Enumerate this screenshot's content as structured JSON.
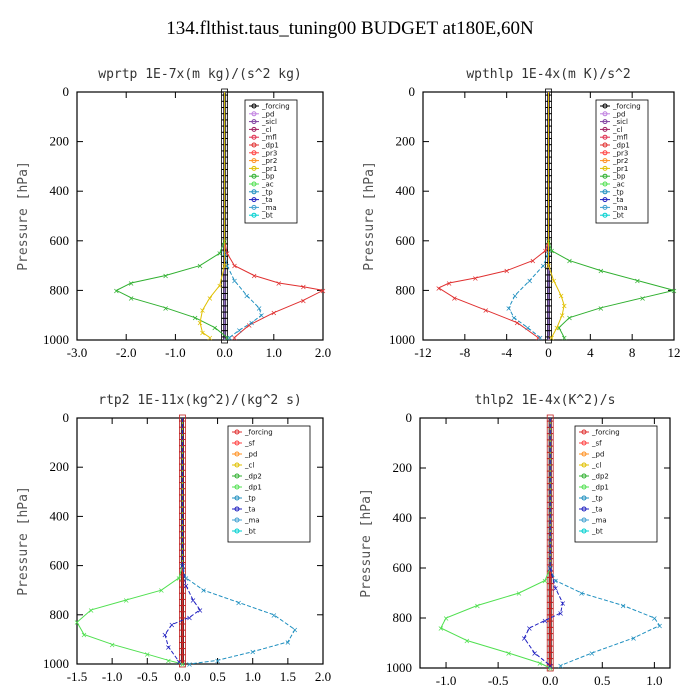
{
  "page_title": "134.flthist.taus_tuning00  BUDGET at180E,60N",
  "chart_data": [
    {
      "type": "line",
      "title": "wprtp  1E-7x(m kg)/(s^2 kg)",
      "ylabel": "Pressure [hPa]",
      "xlim": [
        -3.0,
        2.0
      ],
      "ylim": [
        1000,
        0
      ],
      "xticks": [
        "-3.0",
        "-2.0",
        "-1.0",
        "0.0",
        "1.0",
        "2.0"
      ],
      "xtick_values": [
        -3,
        -2,
        -1,
        0,
        1,
        2
      ],
      "yticks": [
        0,
        200,
        400,
        600,
        800,
        1000
      ],
      "legend_position": "top-right",
      "legend": [
        "_forcing",
        "_pd",
        "_sicl",
        "_cl",
        "_mfl",
        "_dp1",
        "_pr3",
        "_pr2",
        "_pr1",
        "_bp",
        "_ac",
        "_tp",
        "_ta",
        "_ma",
        "_bt"
      ],
      "series": [
        {
          "name": "_dp1",
          "color": "#e03030",
          "x": [
            0,
            0,
            0.05,
            0.2,
            0.6,
            1.1,
            1.6,
            2.0,
            1.6,
            1.0,
            0.5,
            0.2
          ],
          "y": [
            0,
            600,
            650,
            700,
            740,
            770,
            785,
            800,
            840,
            890,
            940,
            990
          ]
        },
        {
          "name": "_ac",
          "color": "#30b030",
          "x": [
            0,
            0,
            -0.1,
            -0.5,
            -1.2,
            -1.9,
            -2.2,
            -1.9,
            -1.2,
            -0.6,
            -0.2,
            0.05
          ],
          "y": [
            0,
            600,
            650,
            700,
            740,
            770,
            800,
            830,
            870,
            910,
            950,
            990
          ]
        },
        {
          "name": "_tp",
          "color": "#2090c0",
          "x": [
            0,
            0,
            0.05,
            0.2,
            0.45,
            0.7,
            0.75,
            0.55,
            0.3,
            0.1
          ],
          "y": [
            0,
            650,
            700,
            760,
            820,
            870,
            900,
            930,
            960,
            990
          ]
        },
        {
          "name": "_pr1",
          "color": "#e0c000",
          "x": [
            0,
            0,
            -0.1,
            -0.3,
            -0.45,
            -0.5,
            -0.45,
            -0.3
          ],
          "y": [
            0,
            700,
            780,
            830,
            880,
            930,
            970,
            990
          ]
        }
      ]
    },
    {
      "type": "line",
      "title": "wpthlp  1E-4x(m K)/s^2",
      "ylabel": "Pressure [hPa]",
      "xlim": [
        -12,
        12
      ],
      "ylim": [
        1000,
        0
      ],
      "xticks": [
        "-12",
        "-8",
        "-4",
        "0",
        "4",
        "8",
        "12"
      ],
      "xtick_values": [
        -12,
        -8,
        -4,
        0,
        4,
        8,
        12
      ],
      "yticks": [
        0,
        200,
        400,
        600,
        800,
        1000
      ],
      "legend_position": "top-right",
      "legend": [
        "_forcing",
        "_pd",
        "_sicl",
        "_cl",
        "_mfl",
        "_dp1",
        "_pr3",
        "_pr2",
        "_pr1",
        "_bp",
        "_ac",
        "_tp",
        "_ta",
        "_ma",
        "_bt"
      ],
      "series": [
        {
          "name": "_dp1",
          "color": "#e03030",
          "x": [
            0,
            0,
            -0.3,
            -1.5,
            -4,
            -7,
            -9.5,
            -10.5,
            -9,
            -6,
            -3,
            -1
          ],
          "y": [
            0,
            600,
            640,
            680,
            720,
            750,
            770,
            790,
            830,
            880,
            930,
            990
          ]
        },
        {
          "name": "_ac",
          "color": "#30b030",
          "x": [
            0,
            0,
            0.3,
            2,
            5,
            8.5,
            12,
            9,
            5,
            2,
            1,
            1.5
          ],
          "y": [
            0,
            600,
            640,
            680,
            720,
            760,
            800,
            830,
            870,
            910,
            950,
            990
          ]
        },
        {
          "name": "_tp",
          "color": "#2090c0",
          "x": [
            0,
            0,
            -0.5,
            -1.8,
            -3.2,
            -3.8,
            -3.3,
            -2,
            -0.8
          ],
          "y": [
            0,
            650,
            700,
            760,
            820,
            870,
            910,
            950,
            990
          ]
        },
        {
          "name": "_pr1",
          "color": "#e0c000",
          "x": [
            0,
            0,
            0.5,
            1.2,
            1.5,
            1.3,
            0.8,
            0.3
          ],
          "y": [
            0,
            700,
            760,
            820,
            860,
            900,
            950,
            990
          ]
        }
      ]
    },
    {
      "type": "line",
      "title": "rtp2  1E-11x(kg^2)/(kg^2 s)",
      "ylabel": "Pressure [hPa]",
      "xlim": [
        -1.5,
        2.0
      ],
      "ylim": [
        1000,
        0
      ],
      "xticks": [
        "-1.5",
        "-1.0",
        "-0.5",
        "0.0",
        "0.5",
        "1.0",
        "1.5",
        "2.0"
      ],
      "xtick_values": [
        -1.5,
        -1.0,
        -0.5,
        0,
        0.5,
        1.0,
        1.5,
        2.0
      ],
      "yticks": [
        0,
        200,
        400,
        600,
        800,
        1000
      ],
      "legend_position": "top-right",
      "legend": [
        "_forcing",
        "_sf",
        "_pd",
        "_cl",
        "_dp2",
        "_dp1",
        "_tp",
        "_ta",
        "_ma",
        "_bt"
      ],
      "series": [
        {
          "name": "_dp1",
          "color": "#50e050",
          "x": [
            0,
            0,
            -0.05,
            -0.3,
            -0.8,
            -1.3,
            -1.5,
            -1.4,
            -1.0,
            -0.5,
            -0.2,
            0
          ],
          "y": [
            0,
            600,
            650,
            700,
            740,
            780,
            830,
            880,
            920,
            960,
            985,
            1000
          ]
        },
        {
          "name": "_tp",
          "color": "#2090c0",
          "x": [
            0,
            0,
            0.05,
            0.3,
            0.8,
            1.3,
            1.6,
            1.5,
            1.0,
            0.5,
            0.1
          ],
          "y": [
            0,
            600,
            650,
            700,
            750,
            800,
            860,
            910,
            950,
            985,
            1000
          ]
        },
        {
          "name": "_ta",
          "color": "#2020c0",
          "x": [
            0,
            0,
            0.05,
            0.15,
            0.25,
            0.1,
            -0.15,
            -0.25,
            -0.2,
            -0.05
          ],
          "y": [
            0,
            600,
            680,
            740,
            780,
            810,
            840,
            880,
            930,
            990
          ]
        },
        {
          "name": "_forcing",
          "color": "#e03030",
          "x": [
            0,
            0
          ],
          "y": [
            0,
            1000
          ]
        }
      ]
    },
    {
      "type": "line",
      "title": "thlp2  1E-4x(K^2)/s",
      "ylabel": "Pressure [hPa]",
      "xlim": [
        -1.25,
        1.15
      ],
      "ylim": [
        1000,
        0
      ],
      "xticks": [
        "-1.0",
        "-0.5",
        "0.0",
        "0.5",
        "1.0"
      ],
      "xtick_values": [
        -1.0,
        -0.5,
        0,
        0.5,
        1.0
      ],
      "yticks": [
        0,
        200,
        400,
        600,
        800,
        1000
      ],
      "legend_position": "top-right",
      "legend": [
        "_forcing",
        "_sf",
        "_pd",
        "_cl",
        "_dp2",
        "_dp1",
        "_tp",
        "_ta",
        "_ma",
        "_bt"
      ],
      "series": [
        {
          "name": "_dp1",
          "color": "#50e050",
          "x": [
            0,
            0,
            -0.05,
            -0.3,
            -0.7,
            -1.0,
            -1.05,
            -0.8,
            -0.4,
            -0.1,
            0
          ],
          "y": [
            0,
            600,
            650,
            700,
            750,
            800,
            840,
            890,
            940,
            980,
            1000
          ]
        },
        {
          "name": "_tp",
          "color": "#2090c0",
          "x": [
            0,
            0,
            0.05,
            0.3,
            0.7,
            1.0,
            1.05,
            0.8,
            0.4,
            0.1
          ],
          "y": [
            0,
            600,
            650,
            700,
            750,
            800,
            830,
            880,
            940,
            990
          ]
        },
        {
          "name": "_ta",
          "color": "#2020c0",
          "x": [
            0,
            0,
            0.05,
            0.12,
            0.1,
            -0.05,
            -0.2,
            -0.25,
            -0.15,
            0
          ],
          "y": [
            0,
            600,
            680,
            740,
            780,
            810,
            840,
            880,
            940,
            990
          ]
        },
        {
          "name": "_forcing",
          "color": "#e03030",
          "x": [
            0,
            0
          ],
          "y": [
            0,
            1000
          ]
        }
      ]
    }
  ]
}
